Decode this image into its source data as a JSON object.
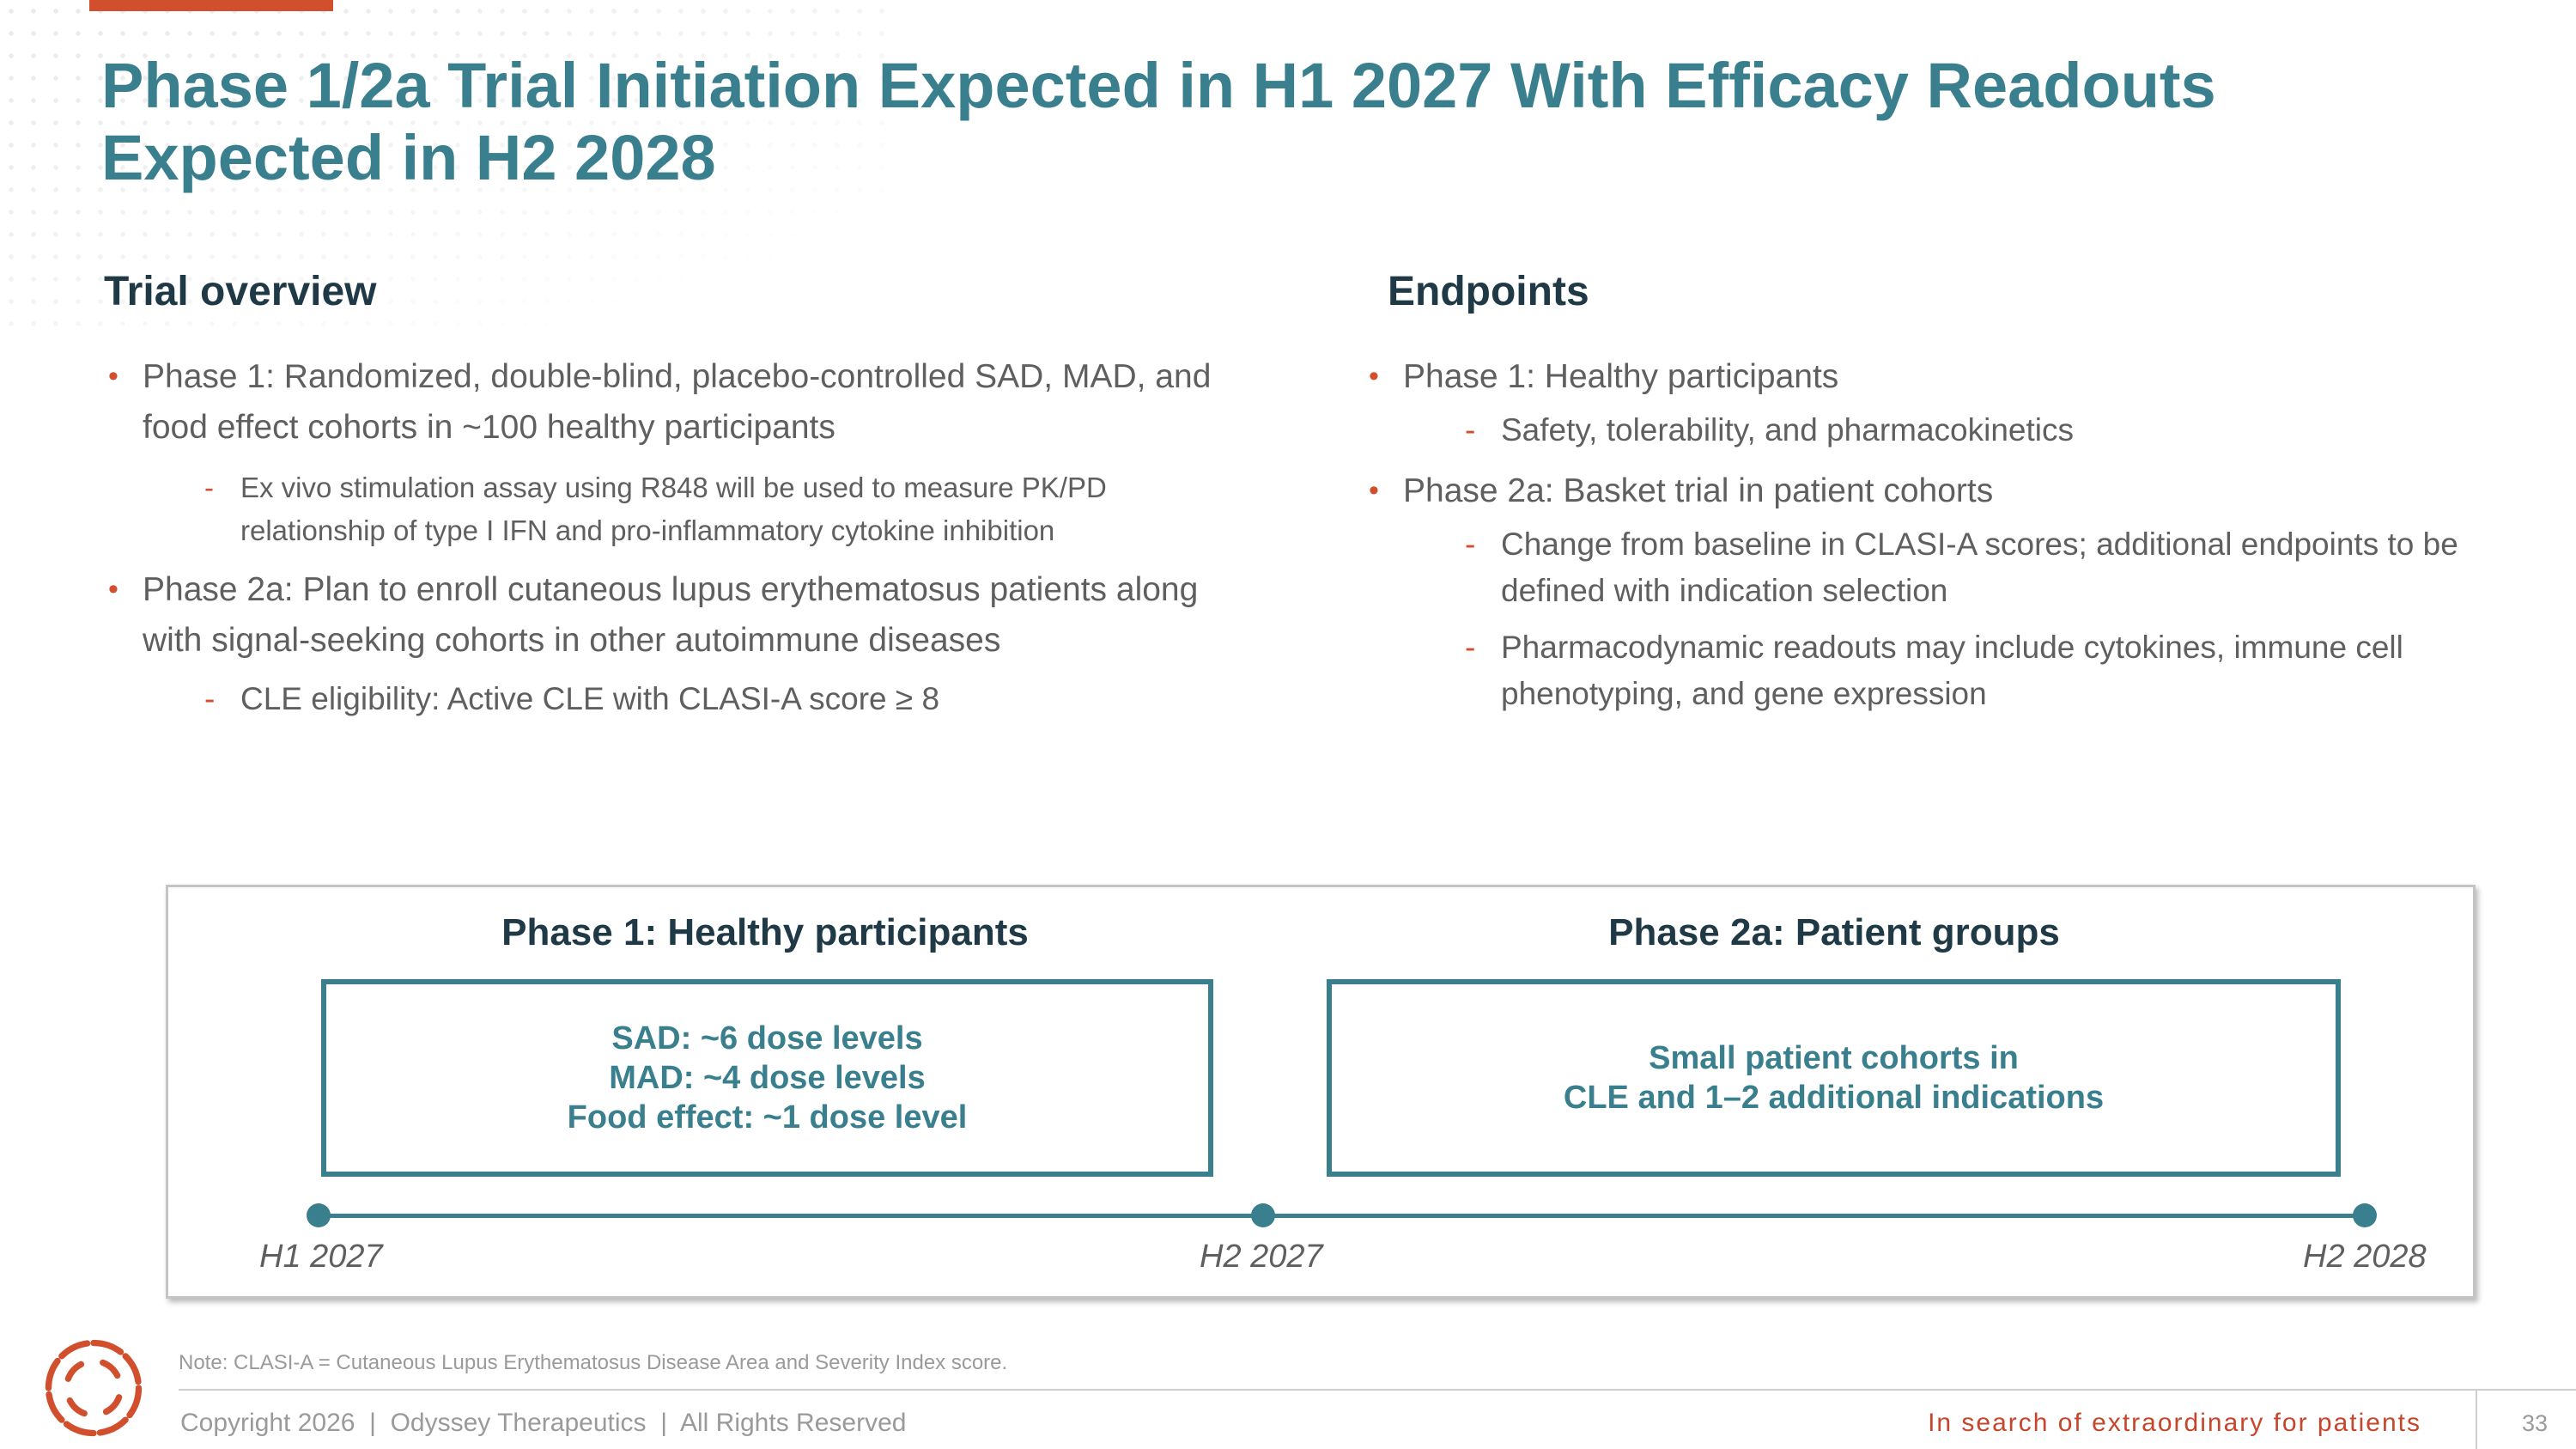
{
  "title": "Phase 1/2a Trial Initiation Expected in H1 2027 With Efficacy Readouts Expected in H2 2028",
  "overview": {
    "heading": "Trial overview",
    "bullets": [
      {
        "text": "Phase 1: Randomized, double-blind, placebo-controlled SAD, MAD, and food effect cohorts in ~100 healthy participants",
        "subs": [
          "Ex vivo stimulation assay using R848 will be used to measure PK/PD relationship of type I IFN and pro-inflammatory cytokine inhibition"
        ]
      },
      {
        "text": "Phase 2a: Plan to enroll cutaneous lupus erythematosus patients along with signal-seeking cohorts in other autoimmune diseases",
        "subs": [
          "CLE eligibility: Active CLE with CLASI-A score ≥ 8"
        ]
      }
    ]
  },
  "endpoints": {
    "heading": "Endpoints",
    "bullets": [
      {
        "text": "Phase 1: Healthy participants",
        "subs": [
          "Safety, tolerability, and pharmacokinetics"
        ]
      },
      {
        "text": "Phase 2a: Basket trial in patient cohorts",
        "subs": [
          "Change from baseline in CLASI-A scores; additional endpoints to be defined with indication selection",
          "Pharmacodynamic readouts may include cytokines, immune cell phenotyping, and gene expression"
        ]
      }
    ]
  },
  "timeline": {
    "phase1": {
      "heading": "Phase 1: Healthy participants",
      "lines": [
        "SAD: ~6 dose levels",
        "MAD: ~4 dose levels",
        "Food effect: ~1 dose level"
      ]
    },
    "phase2": {
      "heading": "Phase 2a: Patient groups",
      "lines": [
        "Small patient cohorts in",
        "CLE and 1–2 additional indications"
      ]
    },
    "milestones": [
      "H1 2027",
      "H2 2027",
      "H2 2028"
    ]
  },
  "note": "Note: CLASI-A = Cutaneous Lupus Erythematosus Disease Area and Severity Index score.",
  "footer": {
    "copyright": "Copyright 2026  |  Odyssey Therapeutics  |  All Rights Reserved",
    "tagline": "In search of extraordinary for patients",
    "page": "33"
  },
  "colors": {
    "teal": "#3a7f8d",
    "accent": "#d24f2e",
    "heading_dark": "#1f3a46"
  },
  "icons": {
    "logo": "odyssey-logo-icon",
    "bullet": "bullet-dot-icon",
    "sub_bullet": "dash-icon"
  }
}
